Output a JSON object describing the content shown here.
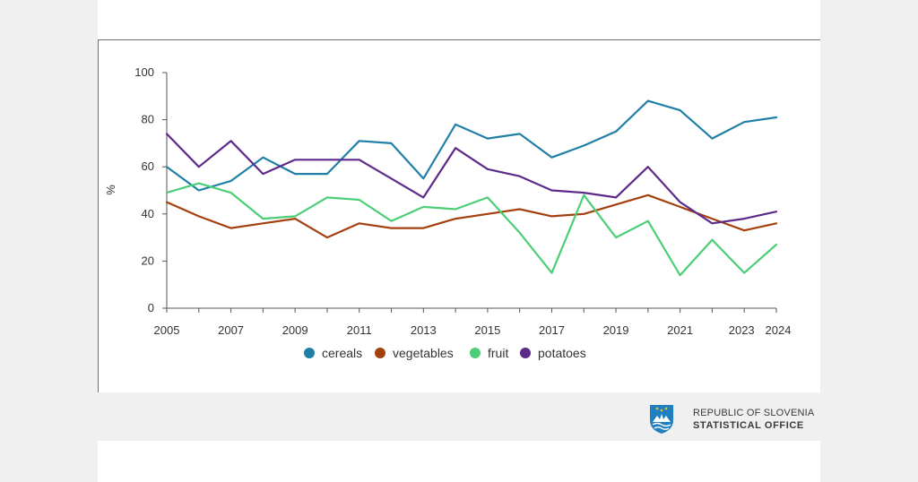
{
  "chart_data": {
    "type": "line",
    "title": "",
    "xlabel": "",
    "ylabel": "%",
    "ylim": [
      0,
      100
    ],
    "yticks": [
      "0",
      "20",
      "40",
      "60",
      "80",
      "100"
    ],
    "xlim": [
      2005,
      2024
    ],
    "xticks": [
      "2005",
      "2007",
      "2009",
      "2011",
      "2013",
      "2015",
      "2017",
      "2019",
      "2021",
      "2023",
      "2024"
    ],
    "grid": false,
    "legend_position": "bottom",
    "x": [
      2005,
      2006,
      2007,
      2008,
      2009,
      2010,
      2011,
      2012,
      2013,
      2014,
      2015,
      2016,
      2017,
      2018,
      2019,
      2020,
      2021,
      2022,
      2023,
      2024
    ],
    "series": [
      {
        "name": "cereals",
        "color": "#1f7fa6",
        "values": [
          60,
          50,
          54,
          64,
          57,
          57,
          71,
          70,
          55,
          78,
          72,
          74,
          64,
          69,
          75,
          88,
          84,
          72,
          79,
          81
        ]
      },
      {
        "name": "vegetables",
        "color": "#a3400e",
        "values": [
          45,
          39,
          34,
          36,
          38,
          30,
          36,
          34,
          34,
          38,
          40,
          42,
          39,
          40,
          44,
          48,
          43,
          38,
          33,
          36
        ]
      },
      {
        "name": "fruit",
        "color": "#4cce76",
        "values": [
          49,
          53,
          49,
          38,
          39,
          47,
          46,
          37,
          43,
          42,
          47,
          32,
          15,
          48,
          30,
          37,
          14,
          29,
          15,
          27
        ]
      },
      {
        "name": "potatoes",
        "color": "#5e2a8a",
        "values": [
          74,
          60,
          71,
          57,
          63,
          63,
          63,
          55,
          47,
          68,
          59,
          56,
          50,
          49,
          47,
          60,
          45,
          36,
          38,
          41
        ]
      }
    ]
  },
  "branding": {
    "line1": "REPUBLIC OF SLOVENIA",
    "line2": "STATISTICAL OFFICE",
    "emblem_color": "#1f7fc0"
  }
}
